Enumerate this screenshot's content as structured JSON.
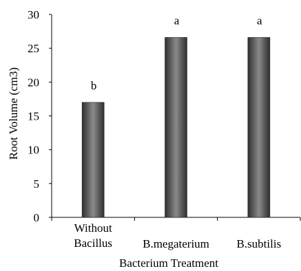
{
  "chart_data": {
    "type": "bar",
    "categories": [
      [
        "Without",
        "Bacillus"
      ],
      [
        "B.megaterium"
      ],
      [
        "B.subtilis"
      ]
    ],
    "values": [
      17,
      26.6,
      26.6
    ],
    "data_labels": [
      "b",
      "a",
      "a"
    ],
    "xlabel": "Bacterium Treatment",
    "ylabel": "Root Volume (cm3)",
    "ylim": [
      0,
      30
    ],
    "yticks": [
      "0",
      "5",
      "10",
      "15",
      "20",
      "25",
      "30"
    ],
    "grid": false,
    "legend": "none",
    "colors": {
      "bar_dark": "#2f2f2f",
      "bar_mid": "#8a8a8a",
      "axis": "#000000"
    }
  }
}
